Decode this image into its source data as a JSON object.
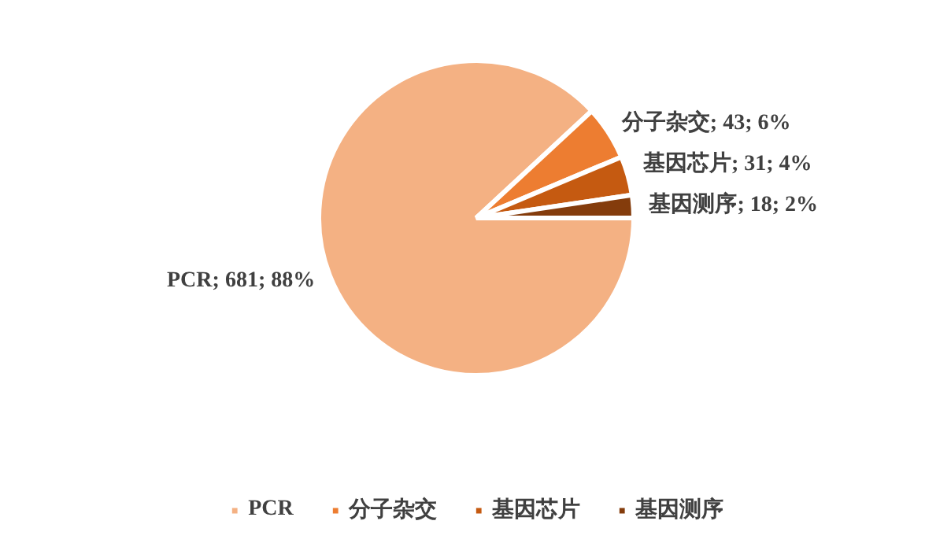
{
  "chart_data": {
    "type": "pie",
    "categories": [
      "PCR",
      "分子杂交",
      "基因芯片",
      "基因测序"
    ],
    "values": [
      681,
      43,
      31,
      18
    ],
    "colors": [
      "#f4b183",
      "#ed7d31",
      "#c55a11",
      "#843c0c"
    ],
    "value_labels": [
      "PCR; 681; 88%",
      "分子杂交; 43; 6%",
      "基因芯片; 31; 4%",
      "基因测序; 18; 2%"
    ],
    "legend": "bottom"
  }
}
